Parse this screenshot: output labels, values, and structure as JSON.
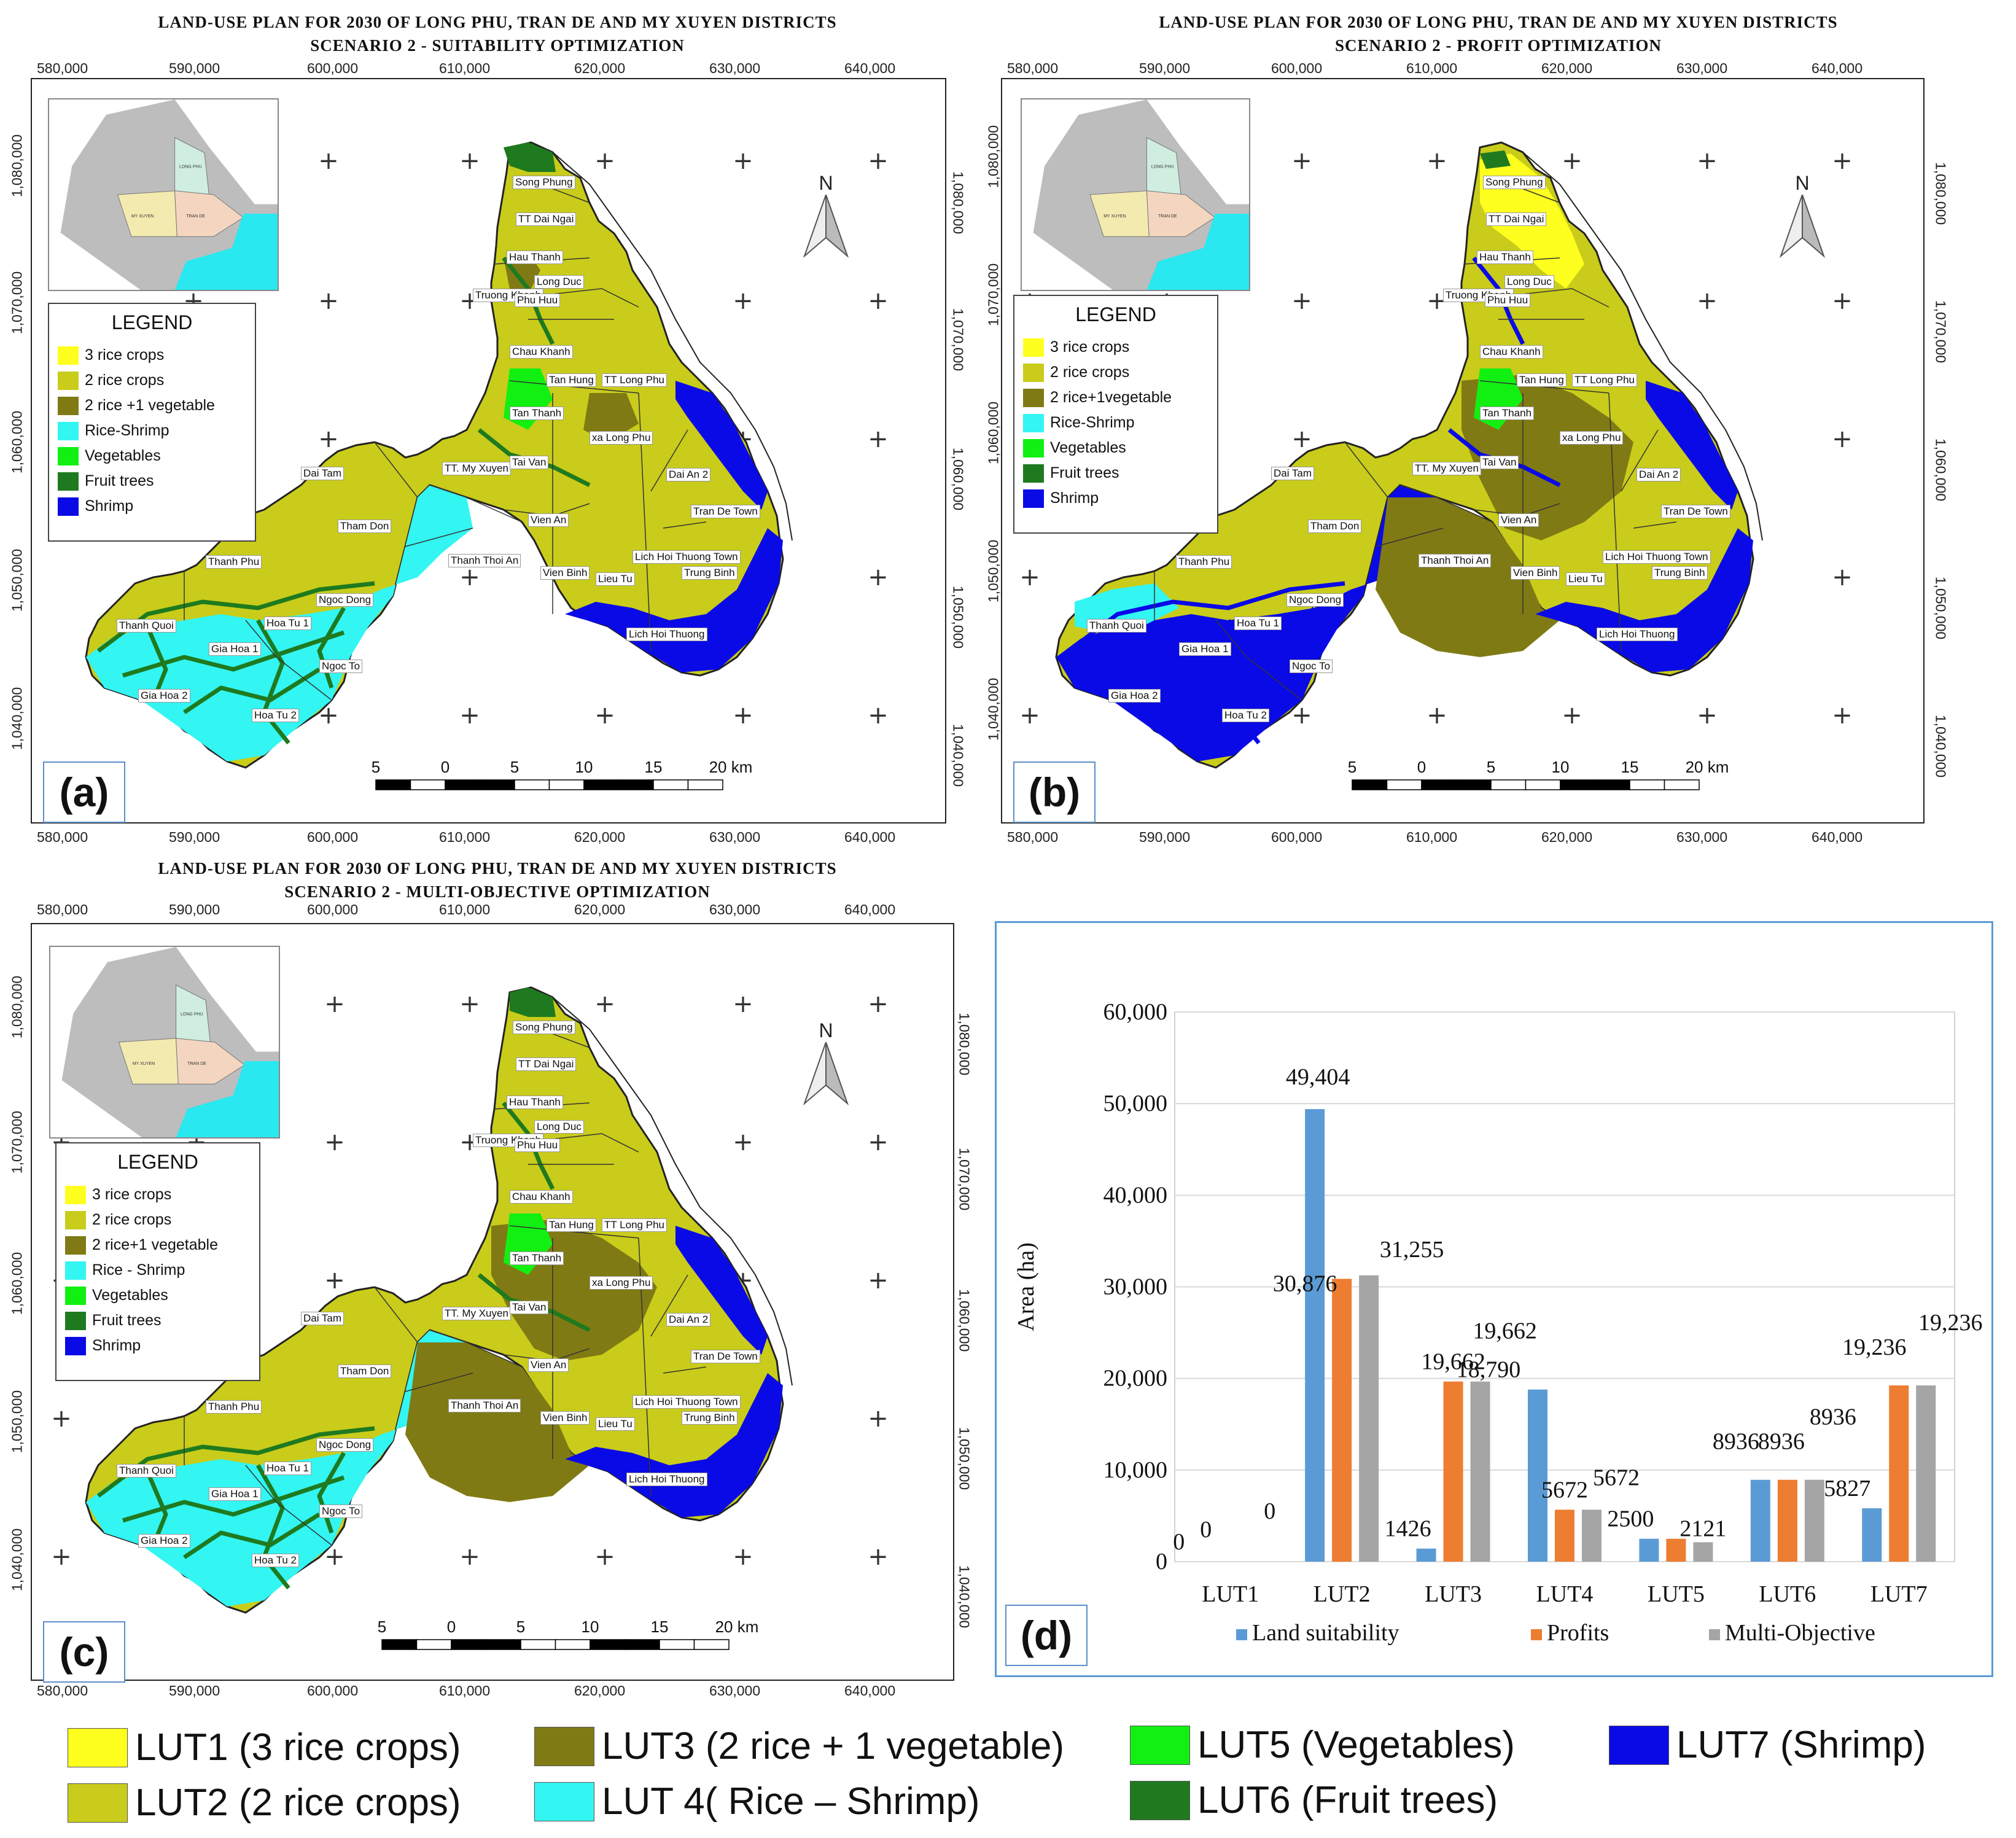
{
  "colors": {
    "lut1": "#ffff1f",
    "lut2": "#c9cc1a",
    "lut3": "#807a14",
    "lut4": "#33f5f2",
    "lut5": "#12f012",
    "lut6": "#1f7a1f",
    "lut7": "#0a0ae6",
    "series_land": "#5b9bd5",
    "series_profit": "#ed7d31",
    "series_multi": "#a5a5a5",
    "inset_gray": "#bdbdbd",
    "inset_mint": "#cfeee0",
    "inset_cream": "#f3eab0",
    "inset_peach": "#f4d6c0",
    "inset_sea": "#29e8f0"
  },
  "axis_ticks": {
    "x": [
      "580,000",
      "590,000",
      "600,000",
      "610,000",
      "620,000",
      "630,000",
      "640,000"
    ],
    "y": [
      "1,080,000",
      "1,070,000",
      "1,060,000",
      "1,050,000",
      "1,040,000"
    ]
  },
  "panels": [
    {
      "id": "a",
      "title1": "LAND-USE PLAN FOR 2030 OF LONG PHU, TRAN DE AND MY XUYEN DISTRICTS",
      "title2": "SCENARIO 2 -  SUITABILITY OPTIMIZATION",
      "tag": "(a)",
      "legend": {
        "title": "LEGEND",
        "items": [
          "3 rice crops",
          "2 rice crops",
          "2 rice +1 vegetable",
          "Rice-Shrimp",
          "Vegetables",
          "Fruit trees",
          "Shrimp"
        ]
      }
    },
    {
      "id": "b",
      "title1": "LAND-USE PLAN FOR 2030 OF LONG PHU, TRAN DE AND MY XUYEN DISTRICTS",
      "title2": "SCENARIO 2 -  PROFIT OPTIMIZATION",
      "tag": "(b)",
      "legend": {
        "title": "LEGEND",
        "items": [
          "3 rice crops",
          "2 rice crops",
          "2 rice+1vegetable",
          "Rice-Shrimp",
          "Vegetables",
          "Fruit trees",
          "Shrimp"
        ]
      }
    },
    {
      "id": "c",
      "title1": "LAND-USE PLAN FOR 2030 OF LONG PHU, TRAN DE AND MY XUYEN DISTRICTS",
      "title2": "SCENARIO 2 -  MULTI-OBJECTIVE  OPTIMIZATION",
      "tag": "(c)",
      "legend": {
        "title": "LEGEND",
        "items": [
          "3 rice crops",
          "2 rice crops",
          "2 rice+1 vegetable",
          "Rice - Shrimp",
          "Vegetables",
          "Fruit trees",
          "Shrimp"
        ]
      }
    }
  ],
  "place_names": [
    "Song Phung",
    "TT Dai Ngai",
    "Hau Thanh",
    "Long Duc",
    "Truong Khanh",
    "Phu Huu",
    "Chau Khanh",
    "Tan Hung",
    "TT Long Phu",
    "Tan Thanh",
    "xa Long Phu",
    "TT. My Xuyen",
    "Tai Van",
    "Dai Tam",
    "Dai An 2",
    "Tham Don",
    "Vien An",
    "Tran De Town",
    "Thanh Phu",
    "Thanh Thoi An",
    "Vien Binh",
    "Lich Hoi Thuong Town",
    "Trung Binh",
    "Lieu Tu",
    "Ngoc Dong",
    "Hoa Tu 1",
    "Thanh Quoi",
    "Gia Hoa 1",
    "Lich Hoi Thuong",
    "Ngoc To",
    "Gia Hoa 2",
    "Hoa Tu 2"
  ],
  "inset_labels": [
    "LONG PHU",
    "MY XUYEN",
    "TRAN DE"
  ],
  "north_label": "N",
  "scale_labels": [
    "5",
    "0",
    "5",
    "10",
    "15",
    "20 km"
  ],
  "chart_data": {
    "type": "bar",
    "tag": "(d)",
    "ylabel": "Area (ha)",
    "xlabel": "",
    "ylim": [
      0,
      60000
    ],
    "yticks": [
      "0",
      "10,000",
      "20,000",
      "30,000",
      "40,000",
      "50,000",
      "60,000"
    ],
    "categories": [
      "LUT1",
      "LUT2",
      "LUT3",
      "LUT4",
      "LUT5",
      "LUT6",
      "LUT7"
    ],
    "series": [
      {
        "name": "Land suitability",
        "values": [
          0,
          49404,
          1426,
          18790,
          2500,
          8936,
          5827
        ]
      },
      {
        "name": "Profits",
        "values": [
          0,
          30876,
          19662,
          5672,
          2500,
          8936,
          19236
        ]
      },
      {
        "name": "Multi-Objective",
        "values": [
          0,
          31255,
          19662,
          5672,
          2121,
          8936,
          19236
        ]
      }
    ],
    "data_labels": [
      [
        "0",
        "49,404",
        "1426",
        "18,790",
        "2500",
        "8936",
        "5827"
      ],
      [
        "0",
        "30,876",
        "19,662",
        "5672",
        "",
        "8936",
        "19,236"
      ],
      [
        "0",
        "31,255",
        "19,662",
        "5672",
        "2121",
        "8936",
        "19,236"
      ]
    ],
    "legend_position": "bottom",
    "grid": true
  },
  "bottom_legend": [
    "LUT1 (3 rice crops)",
    "LUT2 (2 rice crops)",
    "LUT3 (2 rice + 1 vegetable)",
    "LUT 4( Rice – Shrimp)",
    "LUT5 (Vegetables)",
    "LUT6 (Fruit trees)",
    "LUT7 (Shrimp)"
  ]
}
